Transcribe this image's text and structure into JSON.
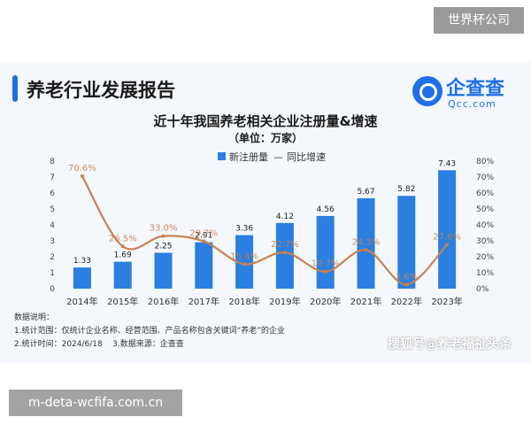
{
  "top_badge": "世界杯公司",
  "header": {
    "title": "养老行业发展报告"
  },
  "logo": {
    "name": "企查查",
    "domain": "Qcc.com"
  },
  "chart_data": {
    "type": "bar",
    "title": "近十年我国养老相关企业注册量&增速",
    "unit": "（单位：万家）",
    "categories": [
      "2014年",
      "2015年",
      "2016年",
      "2017年",
      "2018年",
      "2019年",
      "2020年",
      "2021年",
      "2022年",
      "2023年"
    ],
    "series": [
      {
        "name": "新注册量",
        "type": "bar",
        "axis": "left",
        "color": "#2a7fe0",
        "values": [
          1.33,
          1.69,
          2.25,
          2.91,
          3.36,
          4.12,
          4.56,
          5.67,
          5.82,
          7.43
        ],
        "labels": [
          "1.33",
          "1.69",
          "2.25",
          "2.91",
          "3.36",
          "4.12",
          "4.56",
          "5.67",
          "5.82",
          "7.43"
        ]
      },
      {
        "name": "同比增速",
        "type": "line",
        "axis": "right",
        "color": "#c9814f",
        "values": [
          70.6,
          26.5,
          33.0,
          29.7,
          15.4,
          22.7,
          10.7,
          24.3,
          2.6,
          27.6
        ],
        "labels": [
          "70.6%",
          "26.5%",
          "33.0%",
          "29.7%",
          "15.4%",
          "22.7%",
          "10.7%",
          "24.3%",
          "2.6%",
          "27.6%"
        ]
      }
    ],
    "y_left": {
      "min": 0,
      "max": 8,
      "ticks": [
        "0",
        "1",
        "2",
        "3",
        "4",
        "5",
        "6",
        "7",
        "8"
      ]
    },
    "y_right": {
      "min": 0,
      "max": 80,
      "ticks": [
        "0%",
        "10%",
        "20%",
        "30%",
        "40%",
        "50%",
        "60%",
        "70%",
        "80%"
      ]
    },
    "legend": {
      "position": "top-center",
      "separator": "—"
    },
    "grid": false
  },
  "notes": {
    "heading": "数据说明：",
    "line1": "1.统计范围：仅统计企业名称、经营范围、产品名称包含关键词“养老”的企业",
    "line2": "2.统计时间：2024/6/18    3.数据来源：企查查"
  },
  "watermark": "搜狐号@养老福祉头条",
  "bottom_caption": "m-deta-wcfifa.com.cn"
}
